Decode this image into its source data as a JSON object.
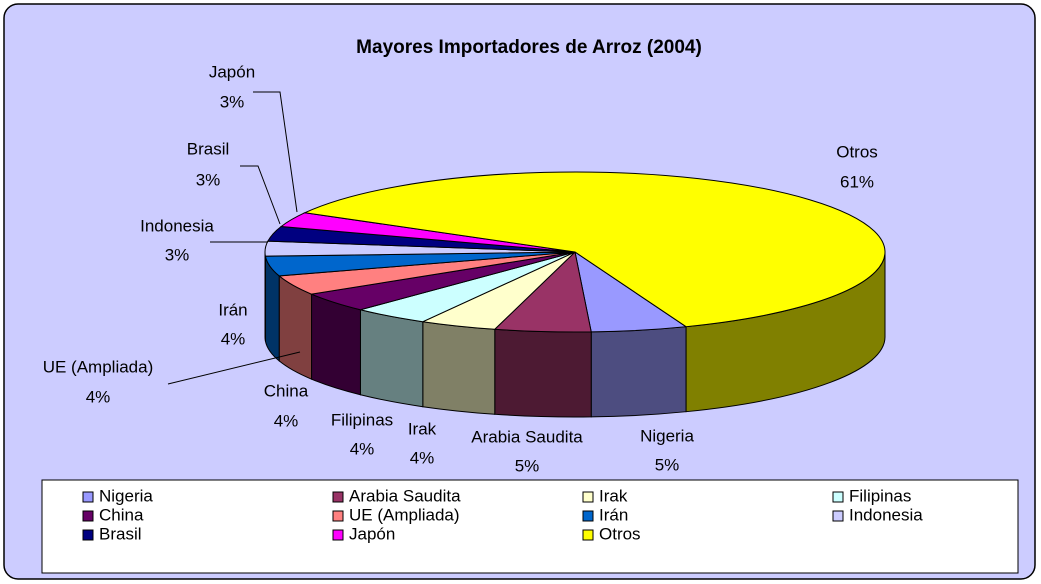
{
  "chart_data": {
    "type": "pie",
    "title": "Mayores Importadores de Arroz (2004)",
    "categories": [
      "Nigeria",
      "Arabia Saudita",
      "Irak",
      "Filipinas",
      "China",
      "UE (Ampliada)",
      "Irán",
      "Indonesia",
      "Brasil",
      "Japón",
      "Otros"
    ],
    "values": [
      5,
      5,
      4,
      4,
      4,
      4,
      4,
      3,
      3,
      3,
      61
    ],
    "value_labels": [
      "5%",
      "5%",
      "4%",
      "4%",
      "4%",
      "4%",
      "4%",
      "3%",
      "3%",
      "3%",
      "61%"
    ],
    "colors": [
      "#9999ff",
      "#993366",
      "#ffffcc",
      "#ccffff",
      "#660066",
      "#ff8080",
      "#0066cc",
      "#ccccff",
      "#000080",
      "#ff00ff",
      "#ffff00"
    ],
    "legend": "bottom"
  }
}
